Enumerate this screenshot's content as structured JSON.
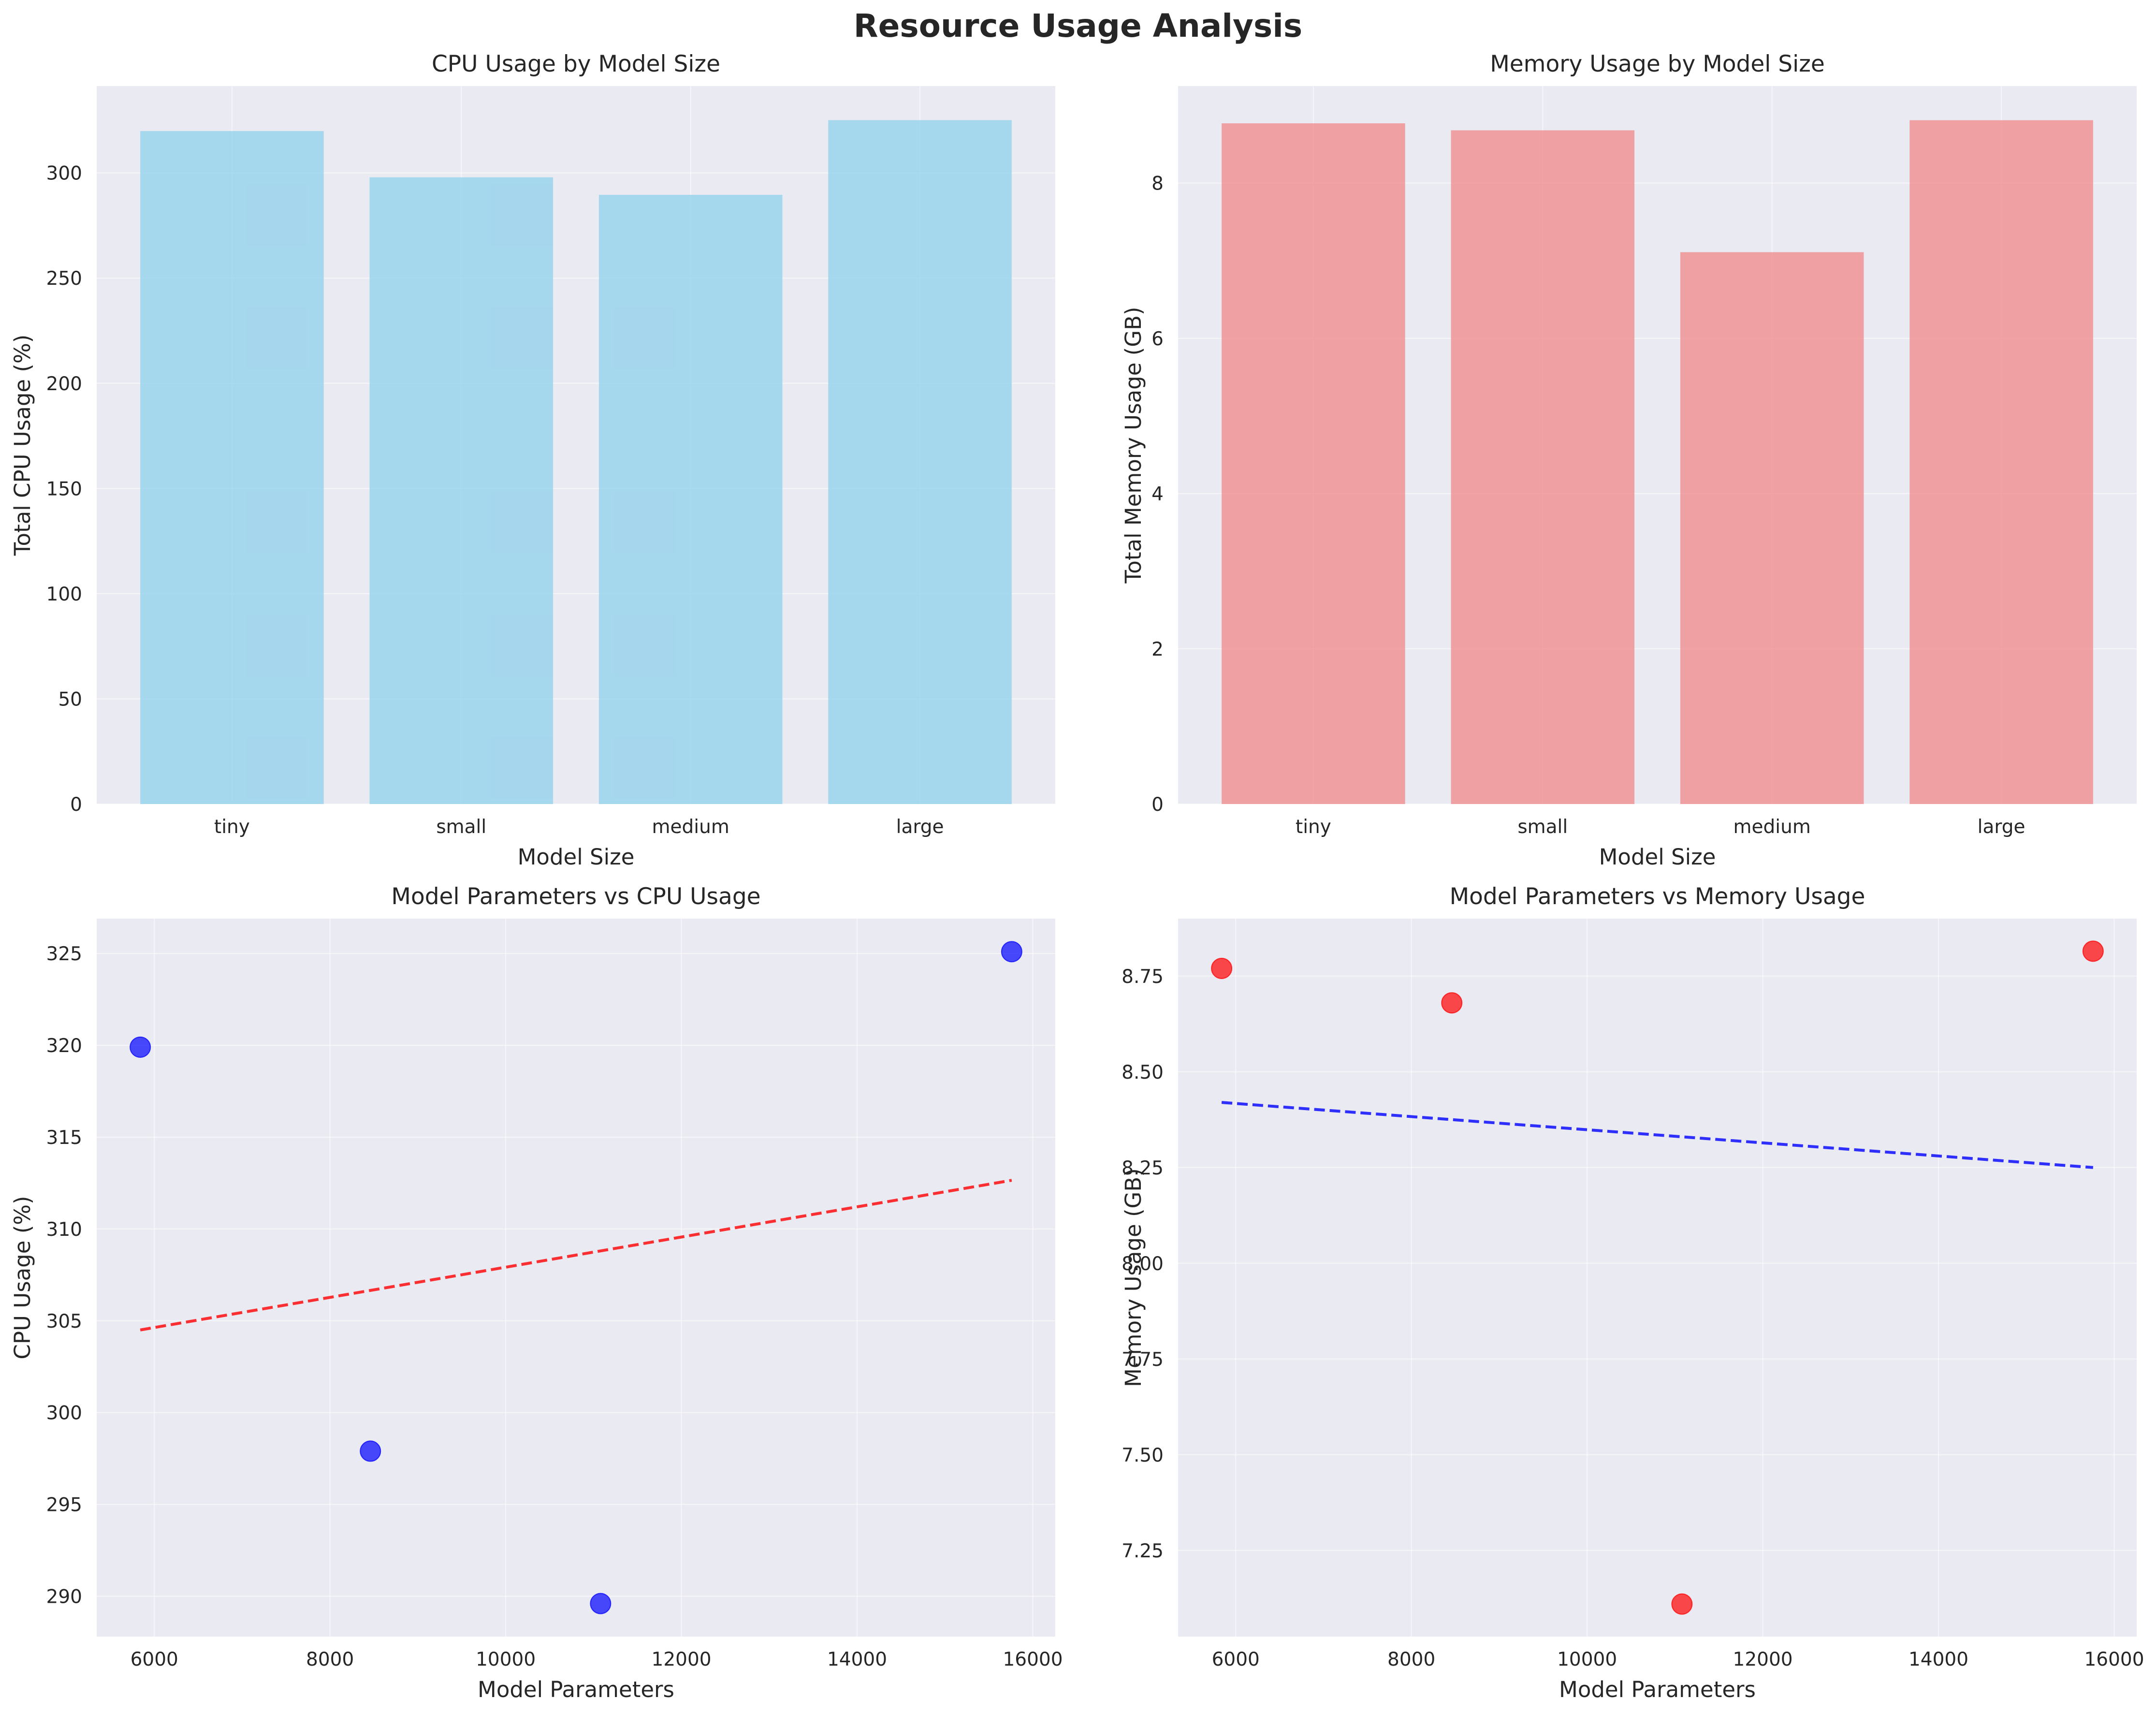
{
  "title": "Resource Usage Analysis",
  "chart_data": [
    {
      "type": "bar",
      "title": "CPU Usage by Model Size",
      "xlabel": "Model Size",
      "ylabel": "Total CPU Usage (%)",
      "categories": [
        "tiny",
        "small",
        "medium",
        "large"
      ],
      "values": [
        319.9,
        297.9,
        289.6,
        325.1
      ],
      "ylim": [
        0,
        341.3
      ],
      "yticks": [
        0,
        50,
        100,
        150,
        200,
        250,
        300
      ],
      "color": "#87ceeb",
      "grid": true
    },
    {
      "type": "bar",
      "title": "Memory Usage by Model Size",
      "xlabel": "Model Size",
      "ylabel": "Total Memory Usage (GB)",
      "categories": [
        "tiny",
        "small",
        "medium",
        "large"
      ],
      "values": [
        8.77,
        8.68,
        7.11,
        8.81
      ],
      "ylim": [
        0,
        9.25
      ],
      "yticks": [
        0,
        2,
        4,
        6,
        8
      ],
      "color": "#f08080",
      "grid": true
    },
    {
      "type": "scatter",
      "title": "Model Parameters vs CPU Usage",
      "xlabel": "Model Parameters",
      "ylabel": "CPU Usage (%)",
      "x": [
        5840,
        8460,
        11080,
        15760
      ],
      "y": [
        319.9,
        297.9,
        289.6,
        325.1
      ],
      "trendline": {
        "x": [
          5840,
          15760
        ],
        "y": [
          304.5,
          312.65
        ],
        "style": "dashed",
        "color": "#ff0000"
      },
      "xlim": [
        5344,
        16256
      ],
      "ylim": [
        287.8,
        326.9
      ],
      "xticks": [
        6000,
        8000,
        10000,
        12000,
        14000,
        16000
      ],
      "yticks": [
        290,
        295,
        300,
        305,
        310,
        315,
        320,
        325
      ],
      "point_color": "#0000ff",
      "grid": true
    },
    {
      "type": "scatter",
      "title": "Model Parameters vs Memory Usage",
      "xlabel": "Model Parameters",
      "ylabel": "Memory Usage (GB)",
      "x": [
        5840,
        8460,
        11080,
        15760
      ],
      "y": [
        8.77,
        8.68,
        7.11,
        8.815
      ],
      "trendline": {
        "x": [
          5840,
          15760
        ],
        "y": [
          8.42,
          8.25
        ],
        "style": "dashed",
        "color": "#0000ff"
      },
      "xlim": [
        5344,
        16256
      ],
      "ylim": [
        7.025,
        8.9
      ],
      "xticks": [
        6000,
        8000,
        10000,
        12000,
        14000,
        16000
      ],
      "yticks": [
        7.25,
        7.5,
        7.75,
        8.0,
        8.25,
        8.5,
        8.75
      ],
      "ytick_decimals": 2,
      "point_color": "#ff0000",
      "grid": true
    }
  ]
}
